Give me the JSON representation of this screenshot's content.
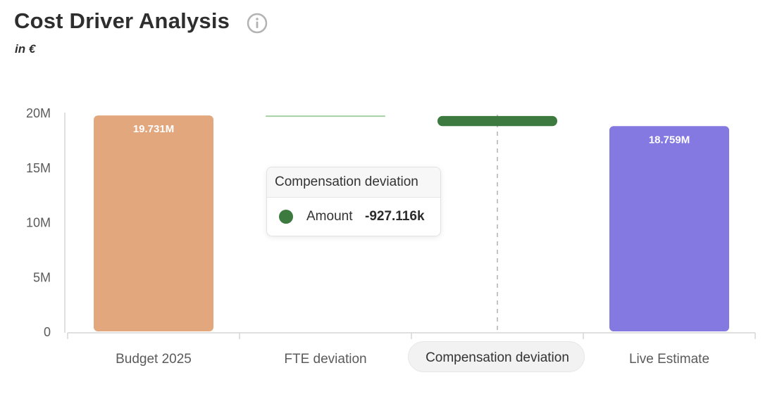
{
  "header": {
    "title": "Cost Driver Analysis",
    "subtitle": "in €",
    "info_icon": "info-circle-icon"
  },
  "tooltip": {
    "title": "Compensation deviation",
    "label": "Amount",
    "value": "-927.116k",
    "marker_color": "#3d7a40"
  },
  "chart_data": {
    "type": "bar",
    "subtype": "waterfall",
    "categories": [
      "Budget 2025",
      "FTE deviation",
      "Compensation deviation",
      "Live Estimate"
    ],
    "values": [
      19731000,
      -45000,
      -927116,
      18759000
    ],
    "data_labels": [
      "19.731M",
      "",
      "",
      "18.759M"
    ],
    "y_ticks": [
      "0",
      "5M",
      "10M",
      "15M",
      "20M"
    ],
    "ylim": [
      0,
      20000000
    ],
    "grid": false,
    "hovered_category": "Compensation deviation",
    "colors": {
      "budget": "#e3a77e",
      "fte": "#a7cfa4",
      "compensation": "#3d7a40",
      "live": "#8479e1",
      "axis": "#d6d6d6",
      "text": "#5b5b5b"
    }
  }
}
